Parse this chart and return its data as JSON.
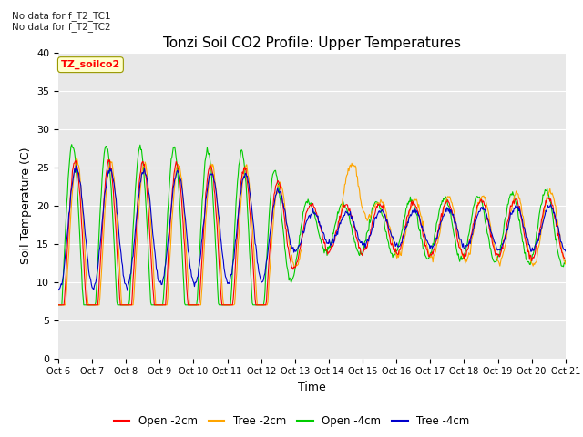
{
  "title": "Tonzi Soil CO2 Profile: Upper Temperatures",
  "ylabel": "Soil Temperature (C)",
  "xlabel": "Time",
  "annotation_lines": [
    "No data for f_T2_TC1",
    "No data for f_T2_TC2"
  ],
  "legend_label": "TZ_soilco2",
  "ylim": [
    0,
    40
  ],
  "yticks": [
    0,
    5,
    10,
    15,
    20,
    25,
    30,
    35,
    40
  ],
  "xtick_labels": [
    "Oct 6",
    "Oct 7",
    "Oct 8",
    "Oct 9",
    "Oct 10",
    "Oct 11",
    "Oct 12",
    "Oct 13",
    "Oct 14",
    "Oct 15",
    "Oct 16",
    "Oct 17",
    "Oct 18",
    "Oct 19",
    "Oct 20",
    "Oct 21"
  ],
  "series": [
    {
      "label": "Open -2cm",
      "color": "#FF0000"
    },
    {
      "label": "Tree -2cm",
      "color": "#FFA500"
    },
    {
      "label": "Open -4cm",
      "color": "#00CC00"
    },
    {
      "label": "Tree -4cm",
      "color": "#0000CC"
    }
  ],
  "background_color": "#E8E8E8",
  "title_fontsize": 11,
  "axis_fontsize": 9,
  "tick_fontsize": 8,
  "figsize": [
    6.4,
    4.8
  ],
  "dpi": 100
}
